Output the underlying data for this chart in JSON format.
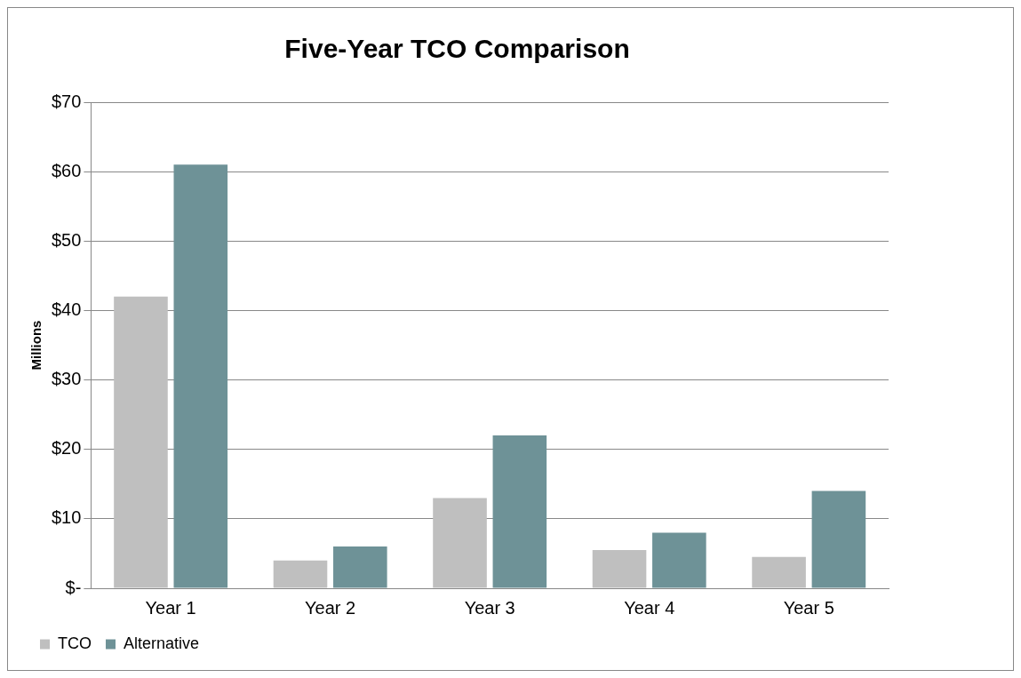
{
  "chart_data": {
    "type": "bar",
    "title": "Five-Year TCO Comparison",
    "ylabel": "Millions",
    "categories": [
      "Year 1",
      "Year 2",
      "Year 3",
      "Year 4",
      "Year 5"
    ],
    "series": [
      {
        "name": "TCO",
        "color": "#bfbfbf",
        "values": [
          42,
          4,
          13,
          5.5,
          4.5
        ]
      },
      {
        "name": "Alternative",
        "color": "#6e9297",
        "values": [
          61,
          6,
          22,
          8,
          14
        ]
      }
    ],
    "ylim": [
      0,
      70
    ],
    "yticks": [
      {
        "value": 0,
        "label": "$-"
      },
      {
        "value": 10,
        "label": "$10"
      },
      {
        "value": 20,
        "label": "$20"
      },
      {
        "value": 30,
        "label": "$30"
      },
      {
        "value": 40,
        "label": "$40"
      },
      {
        "value": 50,
        "label": "$50"
      },
      {
        "value": 60,
        "label": "$60"
      },
      {
        "value": 70,
        "label": "$70"
      }
    ],
    "grid": "y",
    "legend": "bottom left"
  }
}
